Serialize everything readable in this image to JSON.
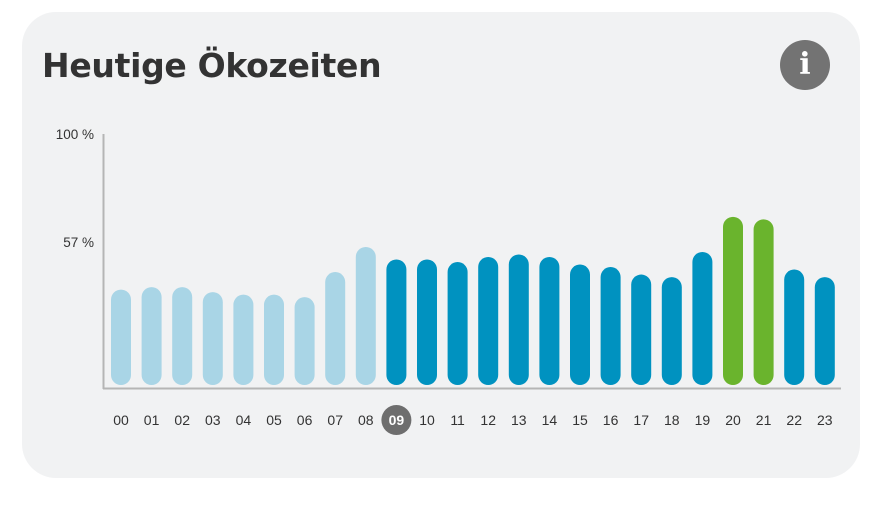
{
  "title": "Heutige Ökozeiten",
  "info_icon": "info-icon",
  "colors": {
    "past": "#a9d5e6",
    "future": "#0092c0",
    "eco": "#6ab42d",
    "current_badge": "#6e6e6e",
    "axis": "#b5b5b5",
    "card": "#f1f2f3"
  },
  "chart_data": {
    "type": "bar",
    "ylim": [
      0,
      100
    ],
    "yticks": [
      {
        "value": 100,
        "label": "100 %"
      },
      {
        "value": 57,
        "label": "57 %"
      }
    ],
    "current_hour": "09",
    "categories": [
      "00",
      "01",
      "02",
      "03",
      "04",
      "05",
      "06",
      "07",
      "08",
      "09",
      "10",
      "11",
      "12",
      "13",
      "14",
      "15",
      "16",
      "17",
      "18",
      "19",
      "20",
      "21",
      "22",
      "23"
    ],
    "values": [
      38,
      39,
      39,
      37,
      36,
      36,
      35,
      45,
      55,
      50,
      50,
      49,
      51,
      52,
      51,
      48,
      47,
      44,
      43,
      53,
      67,
      66,
      46,
      43
    ],
    "states": [
      "past",
      "past",
      "past",
      "past",
      "past",
      "past",
      "past",
      "past",
      "past",
      "future",
      "future",
      "future",
      "future",
      "future",
      "future",
      "future",
      "future",
      "future",
      "future",
      "future",
      "eco",
      "eco",
      "future",
      "future"
    ]
  }
}
